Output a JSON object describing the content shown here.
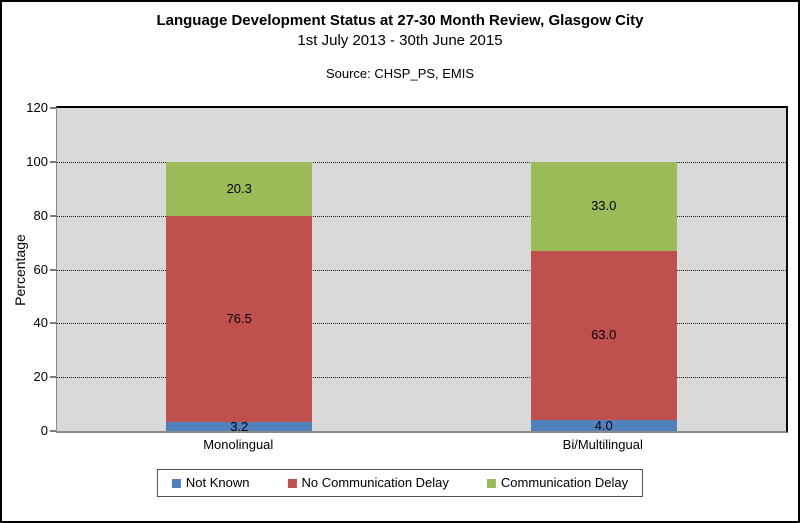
{
  "header": {
    "title": "Language Development Status at 27-30 Month Review, Glasgow City",
    "subtitle": "1st July 2013 - 30th June 2015",
    "source": "Source: CHSP_PS, EMIS"
  },
  "chart_data": {
    "type": "bar",
    "stacked": true,
    "orientation": "vertical",
    "categories": [
      "Monolingual",
      "Bi/Multilingual"
    ],
    "series": [
      {
        "name": "Not Known",
        "color": "#4F81BD",
        "values": [
          3.2,
          4.0
        ]
      },
      {
        "name": "No Communication Delay",
        "color": "#C0504D",
        "values": [
          76.5,
          63.0
        ]
      },
      {
        "name": "Communication Delay",
        "color": "#9BBB59",
        "values": [
          20.3,
          33.0
        ]
      }
    ],
    "value_labels": true,
    "value_label_decimals": 1,
    "xlabel": "",
    "ylabel": "Percentage",
    "ylim": [
      0,
      120
    ],
    "yticks": [
      0,
      20,
      40,
      60,
      80,
      100,
      120
    ],
    "grid": true,
    "gridline_style": "dotted",
    "plot_background": "#D9D9D9",
    "legend_position": "bottom",
    "bar_width_pct": 20
  }
}
